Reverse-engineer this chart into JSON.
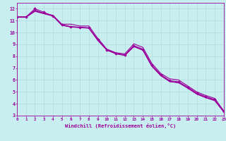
{
  "xlabel": "Windchill (Refroidissement éolien,°C)",
  "background_color": "#c8eef0",
  "line_color": "#9b009b",
  "xlim": [
    0,
    23
  ],
  "ylim": [
    3,
    12.5
  ],
  "xticks": [
    0,
    1,
    2,
    3,
    4,
    5,
    6,
    7,
    8,
    9,
    10,
    11,
    12,
    13,
    14,
    15,
    16,
    17,
    18,
    19,
    20,
    21,
    22,
    23
  ],
  "yticks": [
    3,
    4,
    5,
    6,
    7,
    8,
    9,
    10,
    11,
    12
  ],
  "grid_color": "#b0dde0",
  "line1_y": [
    11.3,
    11.3,
    11.9,
    11.6,
    11.45,
    10.7,
    10.7,
    10.55,
    10.55,
    9.5,
    8.6,
    8.3,
    8.2,
    9.05,
    8.75,
    7.4,
    6.55,
    6.1,
    6.0,
    5.5,
    5.0,
    4.7,
    4.45,
    3.4
  ],
  "line2_y": [
    11.28,
    11.28,
    11.78,
    11.58,
    11.38,
    10.6,
    10.46,
    10.41,
    10.36,
    9.32,
    8.51,
    8.21,
    8.06,
    8.81,
    8.51,
    7.16,
    6.36,
    5.86,
    5.76,
    5.31,
    4.81,
    4.51,
    4.26,
    3.31
  ],
  "line3_y": [
    11.32,
    11.32,
    11.82,
    11.62,
    11.42,
    10.64,
    10.48,
    10.43,
    10.38,
    9.36,
    8.53,
    8.23,
    8.08,
    8.83,
    8.53,
    7.18,
    6.38,
    5.88,
    5.78,
    5.33,
    4.83,
    4.53,
    4.28,
    3.33
  ],
  "marker_y": [
    11.3,
    11.3,
    12.0,
    11.7,
    11.4,
    10.65,
    10.5,
    10.45,
    10.4,
    9.4,
    8.55,
    8.25,
    8.1,
    8.9,
    8.6,
    7.25,
    6.45,
    5.95,
    5.85,
    5.4,
    4.9,
    4.6,
    4.35,
    3.35
  ]
}
